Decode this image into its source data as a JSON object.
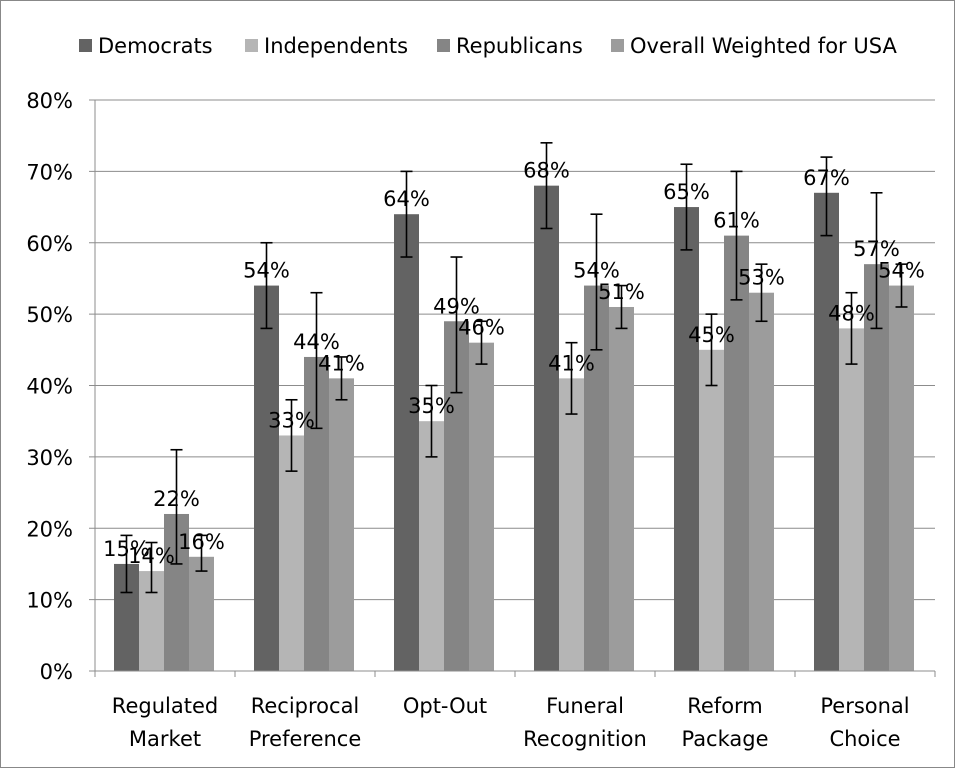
{
  "chart_data": {
    "type": "bar",
    "title": "",
    "xlabel": "",
    "ylabel": "",
    "ylim": [
      0,
      80
    ],
    "ytick_step": 10,
    "ytick_format": "percent",
    "grid": true,
    "legend_position": "top",
    "categories": [
      [
        "Regulated",
        "Market"
      ],
      [
        "Reciprocal",
        "Preference"
      ],
      [
        "Opt-Out"
      ],
      [
        "Funeral",
        "Recognition"
      ],
      [
        "Reform",
        "Package"
      ],
      [
        "Personal",
        "Choice"
      ]
    ],
    "series": [
      {
        "name": "Democrats",
        "color": "#636363",
        "values": [
          15,
          54,
          64,
          68,
          65,
          67
        ],
        "error_low": [
          11,
          48,
          58,
          62,
          59,
          61
        ],
        "error_high": [
          19,
          60,
          70,
          74,
          71,
          72
        ]
      },
      {
        "name": "Independents",
        "color": "#b5b5b5",
        "values": [
          14,
          33,
          35,
          41,
          45,
          48
        ],
        "error_low": [
          11,
          28,
          30,
          36,
          40,
          43
        ],
        "error_high": [
          18,
          38,
          40,
          46,
          50,
          53
        ]
      },
      {
        "name": "Republicans",
        "color": "#858585",
        "values": [
          22,
          44,
          49,
          54,
          61,
          57
        ],
        "error_low": [
          15,
          34,
          39,
          45,
          52,
          48
        ],
        "error_high": [
          31,
          53,
          58,
          64,
          70,
          67
        ]
      },
      {
        "name": "Overall Weighted for USA",
        "color": "#9c9c9c",
        "values": [
          16,
          41,
          46,
          51,
          53,
          54
        ],
        "error_low": [
          14,
          38,
          43,
          48,
          49,
          51
        ],
        "error_high": [
          19,
          44,
          49,
          54,
          57,
          57
        ]
      }
    ],
    "data_labels": [
      [
        "15%",
        "54%",
        "64%",
        "68%",
        "65%",
        "67%"
      ],
      [
        "14%",
        "33%",
        "35%",
        "41%",
        "45%",
        "48%"
      ],
      [
        "22%",
        "44%",
        "49%",
        "54%",
        "61%",
        "57%"
      ],
      [
        "16%",
        "41%",
        "46%",
        "51%",
        "53%",
        "54%"
      ]
    ]
  }
}
